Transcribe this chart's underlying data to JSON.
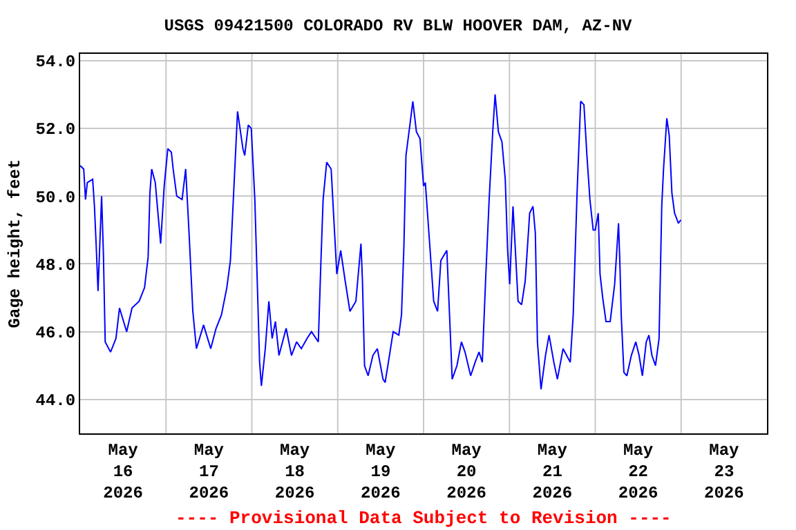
{
  "chart_data": {
    "type": "line",
    "title": "USGS 09421500 COLORADO RV BLW HOOVER DAM, AZ-NV",
    "ylabel": "Gage height, feet",
    "annotations": [
      "---- Provisional Data Subject to Revision ----"
    ],
    "x": [
      "2026-05-16T00:00",
      "2026-05-16T01:00",
      "2026-05-16T01:30",
      "2026-05-16T02:00",
      "2026-05-16T03:30",
      "2026-05-16T04:00",
      "2026-05-16T04:30",
      "2026-05-16T05:00",
      "2026-05-16T06:00",
      "2026-05-16T06:30",
      "2026-05-16T07:00",
      "2026-05-16T08:30",
      "2026-05-16T10:00",
      "2026-05-16T11:00",
      "2026-05-16T13:00",
      "2026-05-16T14:30",
      "2026-05-16T16:30",
      "2026-05-16T18:00",
      "2026-05-16T19:00",
      "2026-05-16T19:30",
      "2026-05-16T20:00",
      "2026-05-16T21:00",
      "2026-05-16T22:00",
      "2026-05-16T22:30",
      "2026-05-16T23:30",
      "2026-05-17T00:30",
      "2026-05-17T01:30",
      "2026-05-17T02:00",
      "2026-05-17T03:00",
      "2026-05-17T04:30",
      "2026-05-17T05:30",
      "2026-05-17T06:30",
      "2026-05-17T07:30",
      "2026-05-17T08:30",
      "2026-05-17T10:30",
      "2026-05-17T12:30",
      "2026-05-17T14:00",
      "2026-05-17T15:30",
      "2026-05-17T17:00",
      "2026-05-17T18:00",
      "2026-05-17T19:00",
      "2026-05-17T20:00",
      "2026-05-17T21:30",
      "2026-05-17T22:00",
      "2026-05-17T23:00",
      "2026-05-17T23:50",
      "2026-05-18T00:50",
      "2026-05-18T01:25",
      "2026-05-18T02:10",
      "2026-05-18T02:40",
      "2026-05-18T03:45",
      "2026-05-18T04:45",
      "2026-05-18T05:40",
      "2026-05-18T06:35",
      "2026-05-18T07:35",
      "2026-05-18T09:35",
      "2026-05-18T11:05",
      "2026-05-18T12:30",
      "2026-05-18T13:50",
      "2026-05-18T15:25",
      "2026-05-18T16:40",
      "2026-05-18T18:35",
      "2026-05-18T19:15",
      "2026-05-18T19:55",
      "2026-05-18T20:55",
      "2026-05-18T22:10",
      "2026-05-18T23:05",
      "2026-05-18T23:45",
      "2026-05-19T00:50",
      "2026-05-19T02:05",
      "2026-05-19T03:25",
      "2026-05-19T05:05",
      "2026-05-19T06:30",
      "2026-05-19T06:55",
      "2026-05-19T07:30",
      "2026-05-19T08:30",
      "2026-05-19T09:50",
      "2026-05-19T11:05",
      "2026-05-19T12:40",
      "2026-05-19T13:15",
      "2026-05-19T14:10",
      "2026-05-19T15:30",
      "2026-05-19T17:05",
      "2026-05-19T17:50",
      "2026-05-19T18:30",
      "2026-05-19T19:05",
      "2026-05-19T20:25",
      "2026-05-19T21:00",
      "2026-05-19T22:00",
      "2026-05-19T23:00",
      "2026-05-20T00:00",
      "2026-05-20T00:30",
      "2026-05-20T01:30",
      "2026-05-20T02:50",
      "2026-05-20T03:55",
      "2026-05-20T04:50",
      "2026-05-20T06:30",
      "2026-05-20T07:25",
      "2026-05-20T08:00",
      "2026-05-20T09:20",
      "2026-05-20T10:35",
      "2026-05-20T11:35",
      "2026-05-20T13:10",
      "2026-05-20T14:25",
      "2026-05-20T15:30",
      "2026-05-20T16:25",
      "2026-05-20T17:20",
      "2026-05-20T18:20",
      "2026-05-20T19:20",
      "2026-05-20T20:00",
      "2026-05-20T20:55",
      "2026-05-20T21:55",
      "2026-05-20T22:50",
      "2026-05-20T23:30",
      "2026-05-21T00:05",
      "2026-05-21T01:00",
      "2026-05-21T01:40",
      "2026-05-21T02:25",
      "2026-05-21T03:25",
      "2026-05-21T04:25",
      "2026-05-21T05:40",
      "2026-05-21T06:35",
      "2026-05-21T07:15",
      "2026-05-21T07:50",
      "2026-05-21T08:50",
      "2026-05-21T10:05",
      "2026-05-21T11:05",
      "2026-05-21T12:25",
      "2026-05-21T13:25",
      "2026-05-21T15:00",
      "2026-05-21T16:00",
      "2026-05-21T17:00",
      "2026-05-21T17:50",
      "2026-05-21T18:55",
      "2026-05-21T19:55",
      "2026-05-21T20:50",
      "2026-05-21T21:40",
      "2026-05-21T22:30",
      "2026-05-21T23:25",
      "2026-05-22T00:00",
      "2026-05-22T00:50",
      "2026-05-22T01:20",
      "2026-05-22T02:05",
      "2026-05-22T03:00",
      "2026-05-22T04:10",
      "2026-05-22T05:25",
      "2026-05-22T06:30",
      "2026-05-22T06:55",
      "2026-05-22T07:15",
      "2026-05-22T08:00",
      "2026-05-22T08:50",
      "2026-05-22T10:05",
      "2026-05-22T11:20",
      "2026-05-22T12:15",
      "2026-05-22T13:10",
      "2026-05-22T14:15",
      "2026-05-22T15:00",
      "2026-05-22T15:50",
      "2026-05-22T16:50",
      "2026-05-22T17:50",
      "2026-05-22T18:35",
      "2026-05-22T19:05",
      "2026-05-22T20:00",
      "2026-05-22T20:40",
      "2026-05-22T21:25",
      "2026-05-22T22:10",
      "2026-05-22T23:15",
      "2026-05-22T23:55"
    ],
    "series": [
      {
        "color": "#0000ff",
        "values": [
          50.9,
          50.8,
          49.9,
          50.4,
          50.5,
          49.7,
          48.5,
          47.2,
          50.0,
          48.3,
          45.7,
          45.4,
          45.8,
          46.7,
          46.0,
          46.7,
          46.9,
          47.3,
          48.2,
          50.1,
          50.8,
          50.4,
          49.2,
          48.6,
          50.3,
          51.4,
          51.3,
          50.8,
          50.0,
          49.9,
          50.8,
          48.8,
          46.6,
          45.5,
          46.2,
          45.5,
          46.1,
          46.5,
          47.3,
          48.1,
          50.3,
          52.5,
          51.4,
          51.2,
          52.1,
          52.0,
          49.9,
          47.8,
          45.1,
          44.4,
          45.5,
          46.9,
          45.8,
          46.3,
          45.3,
          46.1,
          45.3,
          45.7,
          45.5,
          45.8,
          46.0,
          45.7,
          47.9,
          49.9,
          51.0,
          50.8,
          49.0,
          47.7,
          48.4,
          47.5,
          46.6,
          46.9,
          48.6,
          47.5,
          45.0,
          44.7,
          45.3,
          45.5,
          44.6,
          44.5,
          45.1,
          46.0,
          45.9,
          46.5,
          48.5,
          51.2,
          52.3,
          52.8,
          51.9,
          51.7,
          50.3,
          50.4,
          48.9,
          46.9,
          46.6,
          48.1,
          48.4,
          46.1,
          44.6,
          45.0,
          45.7,
          45.4,
          44.7,
          45.1,
          45.4,
          45.1,
          47.5,
          49.9,
          51.9,
          53.0,
          51.9,
          51.6,
          50.5,
          48.4,
          47.4,
          49.7,
          48.4,
          46.9,
          46.8,
          47.5,
          49.5,
          49.7,
          48.9,
          45.7,
          44.3,
          45.3,
          45.9,
          45.1,
          44.6,
          45.5,
          45.3,
          45.1,
          46.5,
          50.1,
          52.8,
          52.7,
          51.2,
          49.9,
          49.0,
          49.0,
          49.5,
          47.7,
          47.0,
          46.3,
          46.3,
          47.4,
          49.2,
          47.9,
          46.5,
          44.8,
          44.7,
          45.3,
          45.7,
          45.3,
          44.7,
          45.7,
          45.9,
          45.3,
          45.0,
          45.8,
          49.7,
          50.8,
          52.3,
          51.8,
          50.1,
          49.5,
          49.2,
          49.3
        ]
      }
    ],
    "xlim": [
      "2026-05-16",
      "2026-05-24"
    ],
    "xticks": [
      {
        "value": "2026-05-16T12:00",
        "label": "May\n16\n2026"
      },
      {
        "value": "2026-05-17",
        "label": null
      },
      {
        "value": "2026-05-17T12:00",
        "label": "May\n17\n2026"
      },
      {
        "value": "2026-05-18",
        "label": null
      },
      {
        "value": "2026-05-18T12:00",
        "label": "May\n18\n2026"
      },
      {
        "value": "2026-05-19",
        "label": null
      },
      {
        "value": "2026-05-19T12:00",
        "label": "May\n19\n2026"
      },
      {
        "value": "2026-05-20",
        "label": null
      },
      {
        "value": "2026-05-20T12:00",
        "label": "May\n20\n2026"
      },
      {
        "value": "2026-05-21",
        "label": null
      },
      {
        "value": "2026-05-21T12:00",
        "label": "May\n21\n2026"
      },
      {
        "value": "2026-05-22",
        "label": null
      },
      {
        "value": "2026-05-22T12:00",
        "label": "May\n22\n2026"
      },
      {
        "value": "2026-05-23",
        "label": null
      },
      {
        "value": "2026-05-23T12:00",
        "label": "May\n23\n2026"
      }
    ],
    "ylim": [
      43,
      54.2
    ],
    "yticks": [
      {
        "value": 44,
        "label": "44.0"
      },
      {
        "value": 46,
        "label": "46.0"
      },
      {
        "value": 48,
        "label": "48.0"
      },
      {
        "value": 50,
        "label": "50.0"
      },
      {
        "value": 52,
        "label": "52.0"
      },
      {
        "value": 54,
        "label": "54.0"
      }
    ],
    "grid": true,
    "marker": "none",
    "line_style": "solid"
  }
}
